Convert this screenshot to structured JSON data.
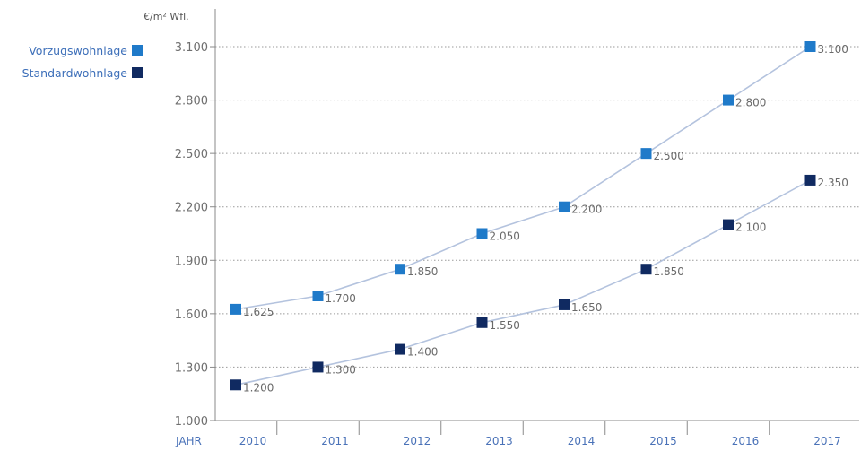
{
  "chart_data": {
    "type": "line",
    "ylabel": "€/m² Wfl.",
    "xlabel": "JAHR",
    "x": [
      "2010",
      "2011",
      "2012",
      "2013",
      "2014",
      "2015",
      "2016",
      "2017"
    ],
    "ylim": [
      1000,
      3100
    ],
    "yticks": [
      {
        "value": 1000,
        "label": "1.000"
      },
      {
        "value": 1300,
        "label": "1.300"
      },
      {
        "value": 1600,
        "label": "1.600"
      },
      {
        "value": 1900,
        "label": "1.900"
      },
      {
        "value": 2200,
        "label": "2.200"
      },
      {
        "value": 2500,
        "label": "2.500"
      },
      {
        "value": 2800,
        "label": "2.800"
      },
      {
        "value": 3100,
        "label": "3.100"
      }
    ],
    "grid": "horizontal dotted",
    "legend_position": "top-left",
    "series": [
      {
        "name": "Vorzugswohnlage",
        "color": "#1f7ac9",
        "values": [
          1625,
          1700,
          1850,
          2050,
          2200,
          2500,
          2800,
          3100
        ],
        "labels": [
          "1.625",
          "1.700",
          "1.850",
          "2.050",
          "2.200",
          "2.500",
          "2.800",
          "3.100"
        ]
      },
      {
        "name": "Standardwohnlage",
        "color": "#102a61",
        "values": [
          1200,
          1300,
          1400,
          1550,
          1650,
          1850,
          2100,
          2350
        ],
        "labels": [
          "1.200",
          "1.300",
          "1.400",
          "1.550",
          "1.650",
          "1.850",
          "2.100",
          "2.350"
        ]
      }
    ]
  }
}
